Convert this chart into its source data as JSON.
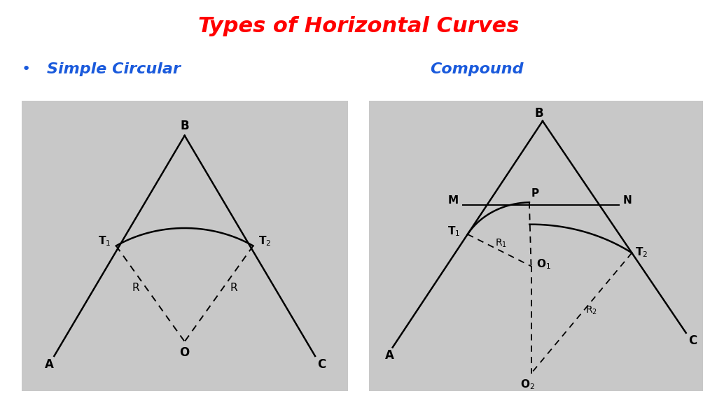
{
  "title": "Types of Horizontal Curves",
  "title_color": "#FF0000",
  "title_fontsize": 22,
  "subtitle1": "Simple Circular",
  "subtitle2": "Compound",
  "subtitle_color": "#1a5adc",
  "subtitle_fontsize": 16,
  "panel_bg": "#c8c8c8",
  "white_bg": "#FFFFFF",
  "bullet": "•"
}
